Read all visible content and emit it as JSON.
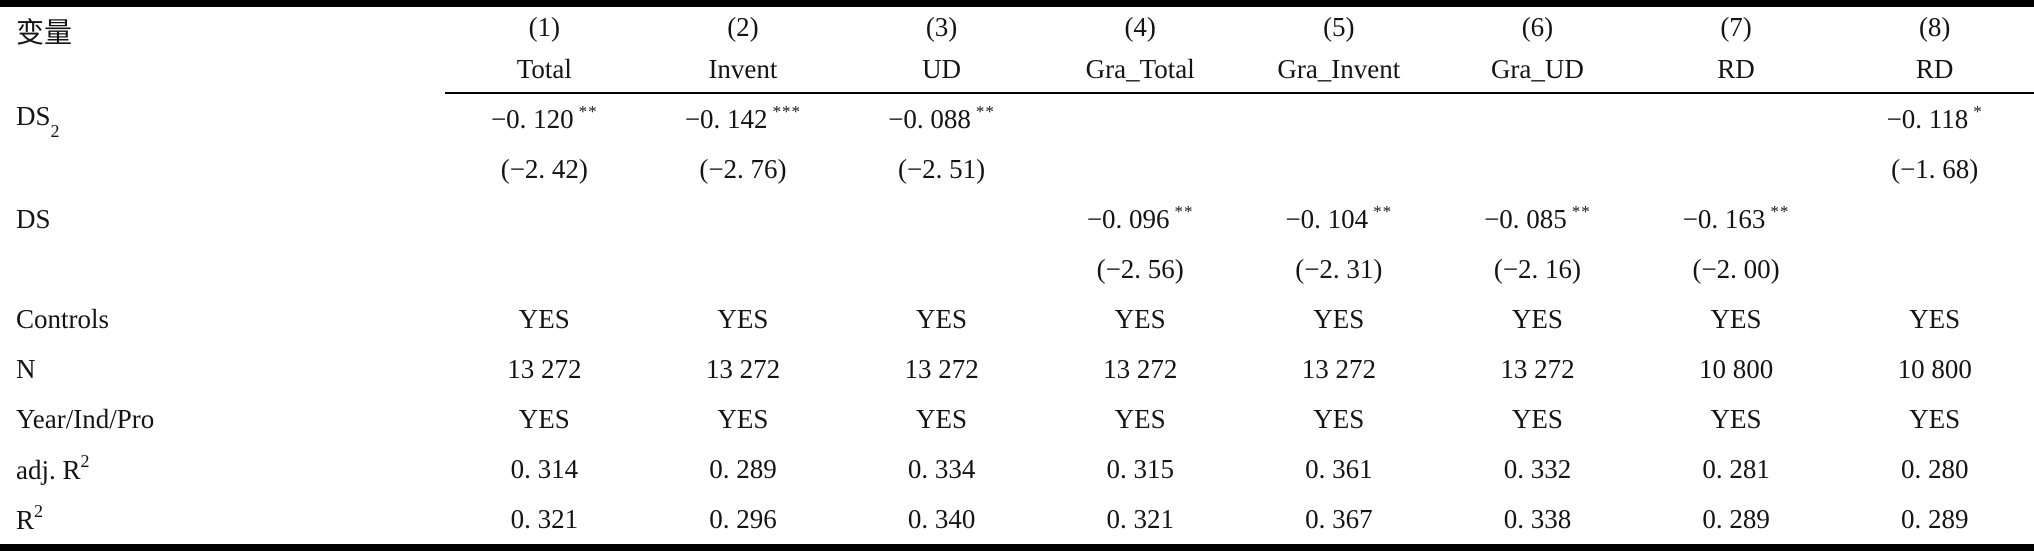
{
  "table": {
    "corner_label": "变量",
    "column_numbers": [
      "(1)",
      "(2)",
      "(3)",
      "(4)",
      "(5)",
      "(6)",
      "(7)",
      "(8)"
    ],
    "column_models": [
      "Total",
      "Invent",
      "UD",
      "Gra_Total",
      "Gra_Invent",
      "Gra_UD",
      "RD",
      "RD"
    ],
    "rows": [
      {
        "label": {
          "main": "DS",
          "sub": "2"
        },
        "cells": [
          {
            "v": "−0. 120",
            "s": "**"
          },
          {
            "v": "−0. 142",
            "s": "***"
          },
          {
            "v": "−0. 088",
            "s": "**"
          },
          "",
          "",
          "",
          "",
          {
            "v": "−0. 118",
            "s": "*"
          }
        ]
      },
      {
        "label": "",
        "cells": [
          "(−2. 42)",
          "(−2. 76)",
          "(−2. 51)",
          "",
          "",
          "",
          "",
          "(−1. 68)"
        ]
      },
      {
        "label": "DS",
        "cells": [
          "",
          "",
          "",
          {
            "v": "−0. 096",
            "s": "**"
          },
          {
            "v": "−0. 104",
            "s": "**"
          },
          {
            "v": "−0. 085",
            "s": "**"
          },
          {
            "v": "−0. 163",
            "s": "**"
          },
          ""
        ]
      },
      {
        "label": "",
        "cells": [
          "",
          "",
          "",
          "(−2. 56)",
          "(−2. 31)",
          "(−2. 16)",
          "(−2. 00)",
          ""
        ]
      },
      {
        "label": "Controls",
        "cells": [
          "YES",
          "YES",
          "YES",
          "YES",
          "YES",
          "YES",
          "YES",
          "YES"
        ]
      },
      {
        "label": "N",
        "cells": [
          "13 272",
          "13 272",
          "13 272",
          "13 272",
          "13 272",
          "13 272",
          "10 800",
          "10 800"
        ]
      },
      {
        "label": "Year/Ind/Pro",
        "cells": [
          "YES",
          "YES",
          "YES",
          "YES",
          "YES",
          "YES",
          "YES",
          "YES"
        ]
      },
      {
        "label": {
          "main": "adj. R",
          "sup": "2"
        },
        "cells": [
          "0. 314",
          "0. 289",
          "0. 334",
          "0. 315",
          "0. 361",
          "0. 332",
          "0. 281",
          "0. 280"
        ]
      },
      {
        "label": {
          "main": "R",
          "sup": "2"
        },
        "cells": [
          "0. 321",
          "0. 296",
          "0. 340",
          "0. 321",
          "0. 367",
          "0. 338",
          "0. 289",
          "0. 289"
        ]
      }
    ],
    "colors": {
      "text": "#141414",
      "border": "#000000",
      "background": "#ffffff"
    }
  }
}
